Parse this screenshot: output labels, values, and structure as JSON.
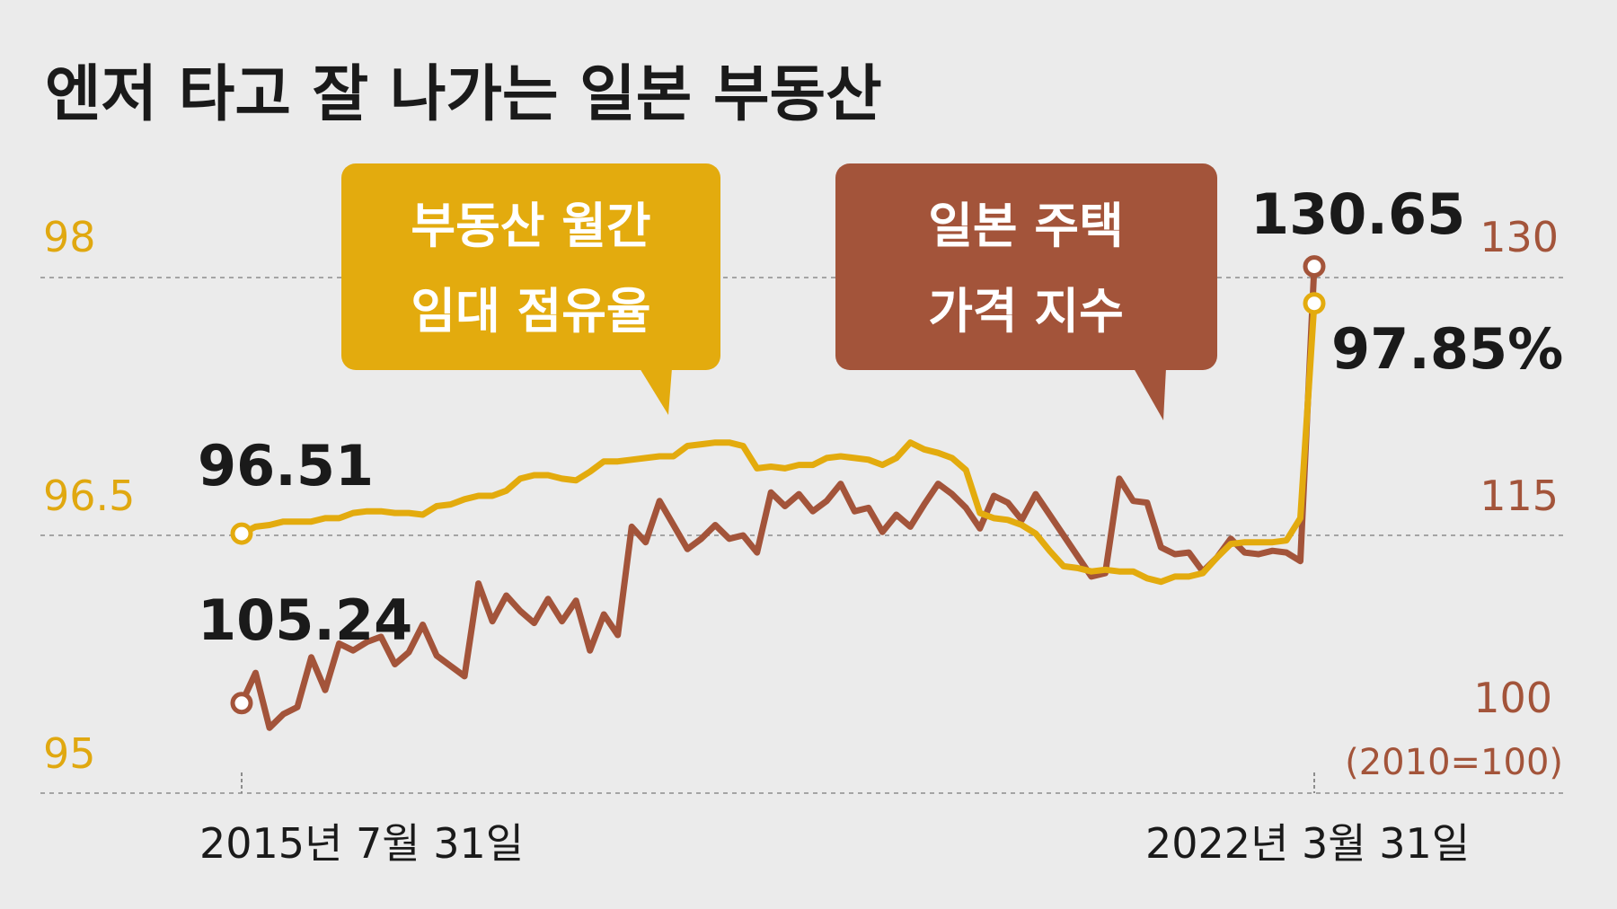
{
  "title": "엔저 타고 잘 나가는 일본 부동산",
  "chart_data": {
    "type": "line",
    "title": "엔저 타고 잘 나가는 일본 부동산",
    "x_start_label": "2015년 7월 31일",
    "x_end_label": "2022년 3월 31일",
    "left_axis": {
      "ticks": [
        "98",
        "96.5",
        "95"
      ],
      "ylim": [
        95,
        98
      ],
      "color": "#e0a810"
    },
    "right_axis": {
      "ticks": [
        "130",
        "115",
        "100"
      ],
      "ylim": [
        100,
        130
      ],
      "note": "(2010=100)",
      "color": "#a3543a"
    },
    "grid": true,
    "series": [
      {
        "name": "부동산 월간 임대 점유율",
        "name_lines": [
          "부동산 월간",
          "임대 점유율"
        ],
        "axis": "left",
        "color": "#e0a810",
        "start_label": "96.51",
        "end_label": "97.85%",
        "values": [
          96.51,
          96.55,
          96.56,
          96.58,
          96.58,
          96.58,
          96.6,
          96.6,
          96.63,
          96.64,
          96.64,
          96.63,
          96.63,
          96.62,
          96.67,
          96.68,
          96.71,
          96.73,
          96.73,
          96.76,
          96.83,
          96.85,
          96.85,
          96.83,
          96.82,
          96.87,
          96.93,
          96.93,
          96.94,
          96.95,
          96.96,
          96.96,
          97.02,
          97.03,
          97.04,
          97.04,
          97.02,
          96.89,
          96.9,
          96.89,
          96.91,
          96.91,
          96.95,
          96.96,
          96.95,
          96.94,
          96.91,
          96.95,
          97.04,
          97.0,
          96.98,
          96.95,
          96.88,
          96.63,
          96.6,
          96.59,
          96.56,
          96.51,
          96.41,
          96.32,
          96.31,
          96.29,
          96.3,
          96.29,
          96.29,
          96.25,
          96.23,
          96.26,
          96.26,
          96.28,
          96.37,
          96.45,
          96.46,
          96.46,
          96.46,
          96.47,
          96.6,
          97.85
        ]
      },
      {
        "name": "일본 주택 가격 지수",
        "name_lines": [
          "일본 주택",
          "가격 지수"
        ],
        "axis": "right",
        "color": "#a3543a",
        "start_label": "105.24",
        "end_label": "130.65",
        "values": [
          105.24,
          107.0,
          103.8,
          104.6,
          105.0,
          107.9,
          106.0,
          108.7,
          108.3,
          108.8,
          109.1,
          107.5,
          108.2,
          109.8,
          108.0,
          107.4,
          106.8,
          112.2,
          110.0,
          111.5,
          110.6,
          109.9,
          111.3,
          110.0,
          111.2,
          108.3,
          110.4,
          109.2,
          115.5,
          114.6,
          117.0,
          115.6,
          114.2,
          114.8,
          115.6,
          114.8,
          115.0,
          114.0,
          117.5,
          116.7,
          117.4,
          116.4,
          117.0,
          118.0,
          116.4,
          116.6,
          115.2,
          116.2,
          115.5,
          116.8,
          118.0,
          117.4,
          116.6,
          115.4,
          117.3,
          116.9,
          115.9,
          117.4,
          116.2,
          115.0,
          113.8,
          112.6,
          112.8,
          118.3,
          117.0,
          116.9,
          114.3,
          113.9,
          114.0,
          112.9,
          113.7,
          114.8,
          114.0,
          113.9,
          114.1,
          114.0,
          113.5,
          130.65
        ]
      }
    ]
  }
}
